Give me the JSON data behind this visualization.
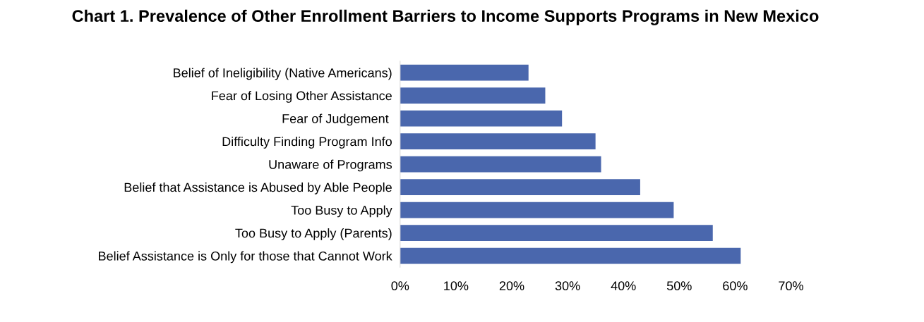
{
  "chart_data": {
    "type": "bar",
    "orientation": "horizontal",
    "title": "Chart 1. Prevalence of Other Enrollment Barriers to Income Supports Programs in New Mexico",
    "categories": [
      "Belief of Ineligibility (Native Americans)",
      "Fear of Losing Other Assistance",
      "Fear of Judgement ",
      "Difficulty Finding Program Info",
      "Unaware of Programs",
      "Belief that Assistance is Abused by Able People",
      "Too Busy to Apply",
      "Too Busy to Apply (Parents)",
      "Belief Assistance is Only for those that Cannot Work"
    ],
    "values": [
      23,
      26,
      29,
      35,
      36,
      43,
      49,
      56,
      61
    ],
    "color": "#4a67ad",
    "xlim": [
      0,
      70
    ],
    "xticks": [
      {
        "value": 0,
        "label": "0%"
      },
      {
        "value": 10,
        "label": "10%"
      },
      {
        "value": 20,
        "label": "20%"
      },
      {
        "value": 30,
        "label": "30%"
      },
      {
        "value": 40,
        "label": "40%"
      },
      {
        "value": 50,
        "label": "50%"
      },
      {
        "value": 60,
        "label": "60%"
      },
      {
        "value": 70,
        "label": "70%"
      }
    ],
    "grid": false,
    "legend": false
  }
}
